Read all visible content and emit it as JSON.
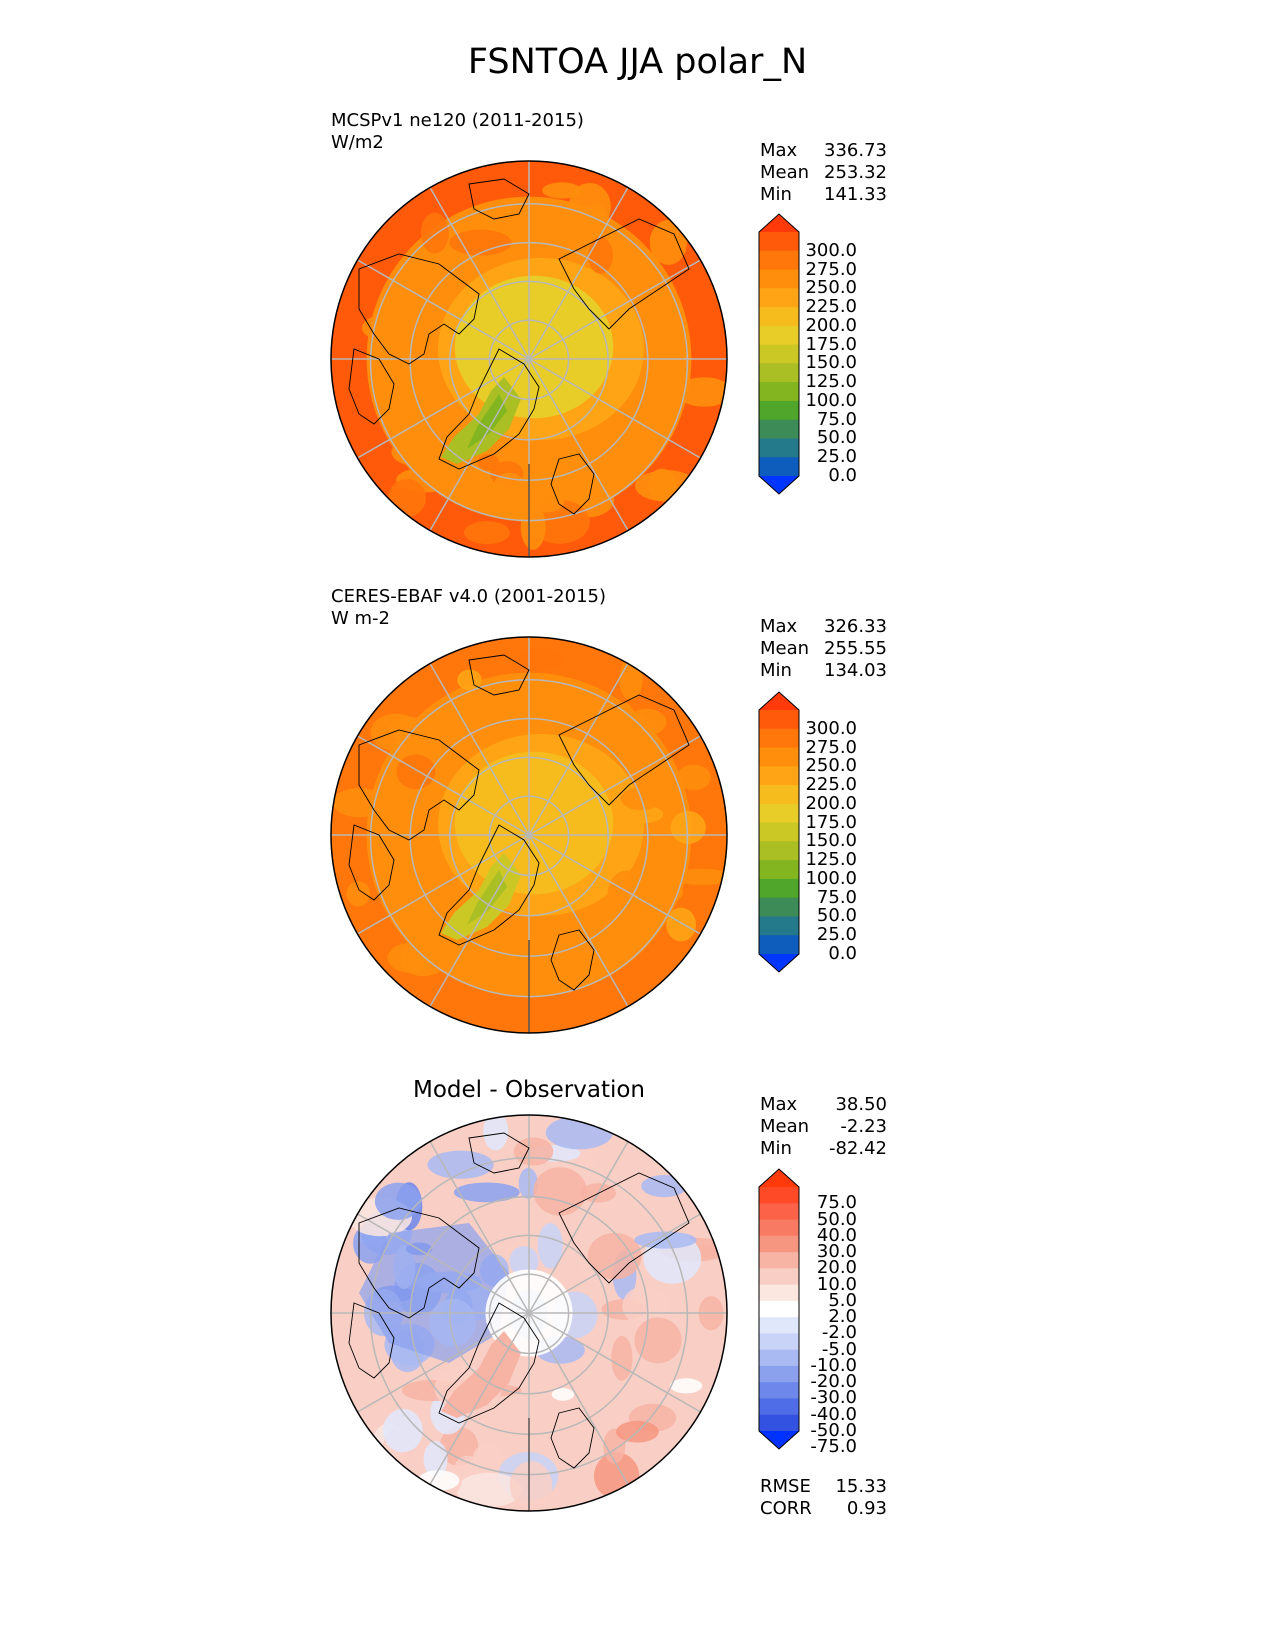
{
  "title": "FSNTOA JJA polar_N",
  "chart_data": [
    {
      "type": "heatmap",
      "projection": "north-polar-stereographic",
      "title": "MCSPv1 ne120 (2011-2015)",
      "units": "W/m2",
      "stats": [
        {
          "label": "Max",
          "value": "336.73"
        },
        {
          "label": "Mean",
          "value": "253.32"
        },
        {
          "label": "Min",
          "value": "141.33"
        }
      ],
      "colorbar": {
        "levels": [
          "300.0",
          "275.0",
          "250.0",
          "225.0",
          "200.0",
          "175.0",
          "150.0",
          "125.0",
          "100.0",
          "75.0",
          "50.0",
          "25.0",
          "0.0"
        ],
        "colors": [
          "#ff3a0a",
          "#ff5a0a",
          "#ff760a",
          "#ff8e0c",
          "#ffa515",
          "#f6bc1e",
          "#e8cc28",
          "#cbc826",
          "#aabf23",
          "#82b51f",
          "#4fa62a",
          "#3d8c58",
          "#24798a",
          "#0e5cbc",
          "#0036ff"
        ],
        "extend": "both"
      },
      "field": {
        "outer_value": 310,
        "mid_value": 270,
        "inner_value": 195,
        "greenland_value": 140
      }
    },
    {
      "type": "heatmap",
      "projection": "north-polar-stereographic",
      "title": "CERES-EBAF v4.0 (2001-2015)",
      "units": "W m-2",
      "stats": [
        {
          "label": "Max",
          "value": "326.33"
        },
        {
          "label": "Mean",
          "value": "255.55"
        },
        {
          "label": "Min",
          "value": "134.03"
        }
      ],
      "colorbar": {
        "levels": [
          "300.0",
          "275.0",
          "250.0",
          "225.0",
          "200.0",
          "175.0",
          "150.0",
          "125.0",
          "100.0",
          "75.0",
          "50.0",
          "25.0",
          "0.0"
        ],
        "colors": [
          "#ff3a0a",
          "#ff5a0a",
          "#ff760a",
          "#ff8e0c",
          "#ffa515",
          "#f6bc1e",
          "#e8cc28",
          "#cbc826",
          "#aabf23",
          "#82b51f",
          "#4fa62a",
          "#3d8c58",
          "#24798a",
          "#0e5cbc",
          "#0036ff"
        ],
        "extend": "both"
      },
      "field": {
        "outer_value": 290,
        "mid_value": 265,
        "inner_value": 200,
        "greenland_value": 155
      }
    },
    {
      "type": "heatmap",
      "projection": "north-polar-stereographic",
      "title": "Model - Observation",
      "stats": [
        {
          "label": "Max",
          "value": "38.50"
        },
        {
          "label": "Mean",
          "value": "-2.23"
        },
        {
          "label": "Min",
          "value": "-82.42"
        }
      ],
      "metrics": [
        {
          "label": "RMSE",
          "value": "15.33"
        },
        {
          "label": "CORR",
          "value": "0.93"
        }
      ],
      "colorbar": {
        "levels": [
          "75.0",
          "50.0",
          "40.0",
          "30.0",
          "20.0",
          "10.0",
          "5.0",
          "2.0",
          "-2.0",
          "-5.0",
          "-10.0",
          "-20.0",
          "-30.0",
          "-40.0",
          "-50.0",
          "-75.0"
        ],
        "colors": [
          "#ff3a0a",
          "#ff4a28",
          "#fb6247",
          "#f87a62",
          "#f69680",
          "#f7b3a3",
          "#f9cfc5",
          "#fce6e0",
          "#ffffff",
          "#e1e7fb",
          "#c8d3f7",
          "#a9baf2",
          "#8ba1ee",
          "#6d87ea",
          "#4f6de6",
          "#3452e2",
          "#0032ff"
        ],
        "extend": "both"
      }
    }
  ]
}
